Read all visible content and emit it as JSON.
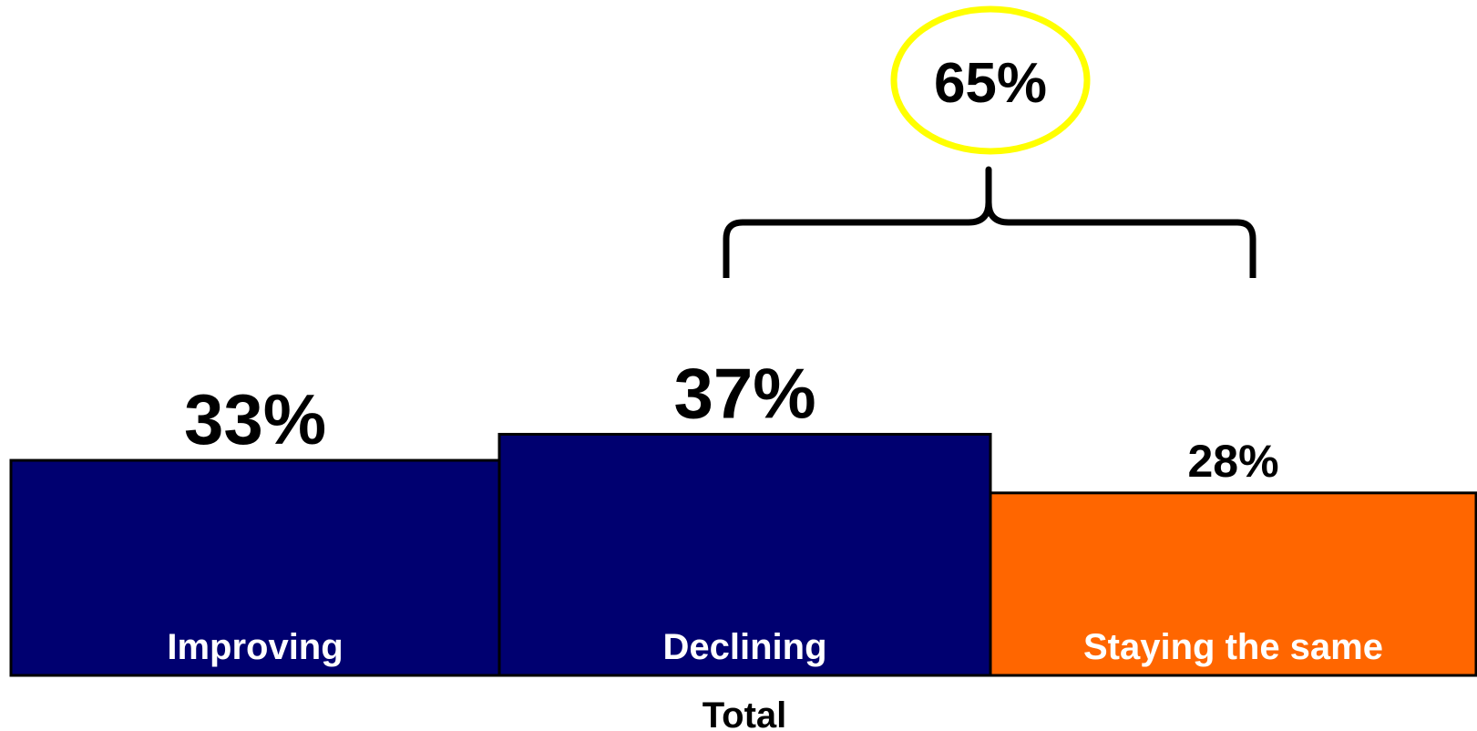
{
  "chart_data": {
    "type": "bar",
    "categories": [
      "Improving",
      "Declining",
      "Staying the same"
    ],
    "values": [
      33,
      37,
      28
    ],
    "value_labels": [
      "33%",
      "37%",
      "28%"
    ],
    "colors": [
      "#000070",
      "#000070",
      "#ff6600"
    ],
    "xlabel": "Total",
    "ylim": [
      0,
      100
    ],
    "grid": false,
    "annotation": {
      "label": "65%",
      "spans_categories": [
        "Declining",
        "Staying the same"
      ],
      "circle_color": "#ffff00"
    }
  }
}
